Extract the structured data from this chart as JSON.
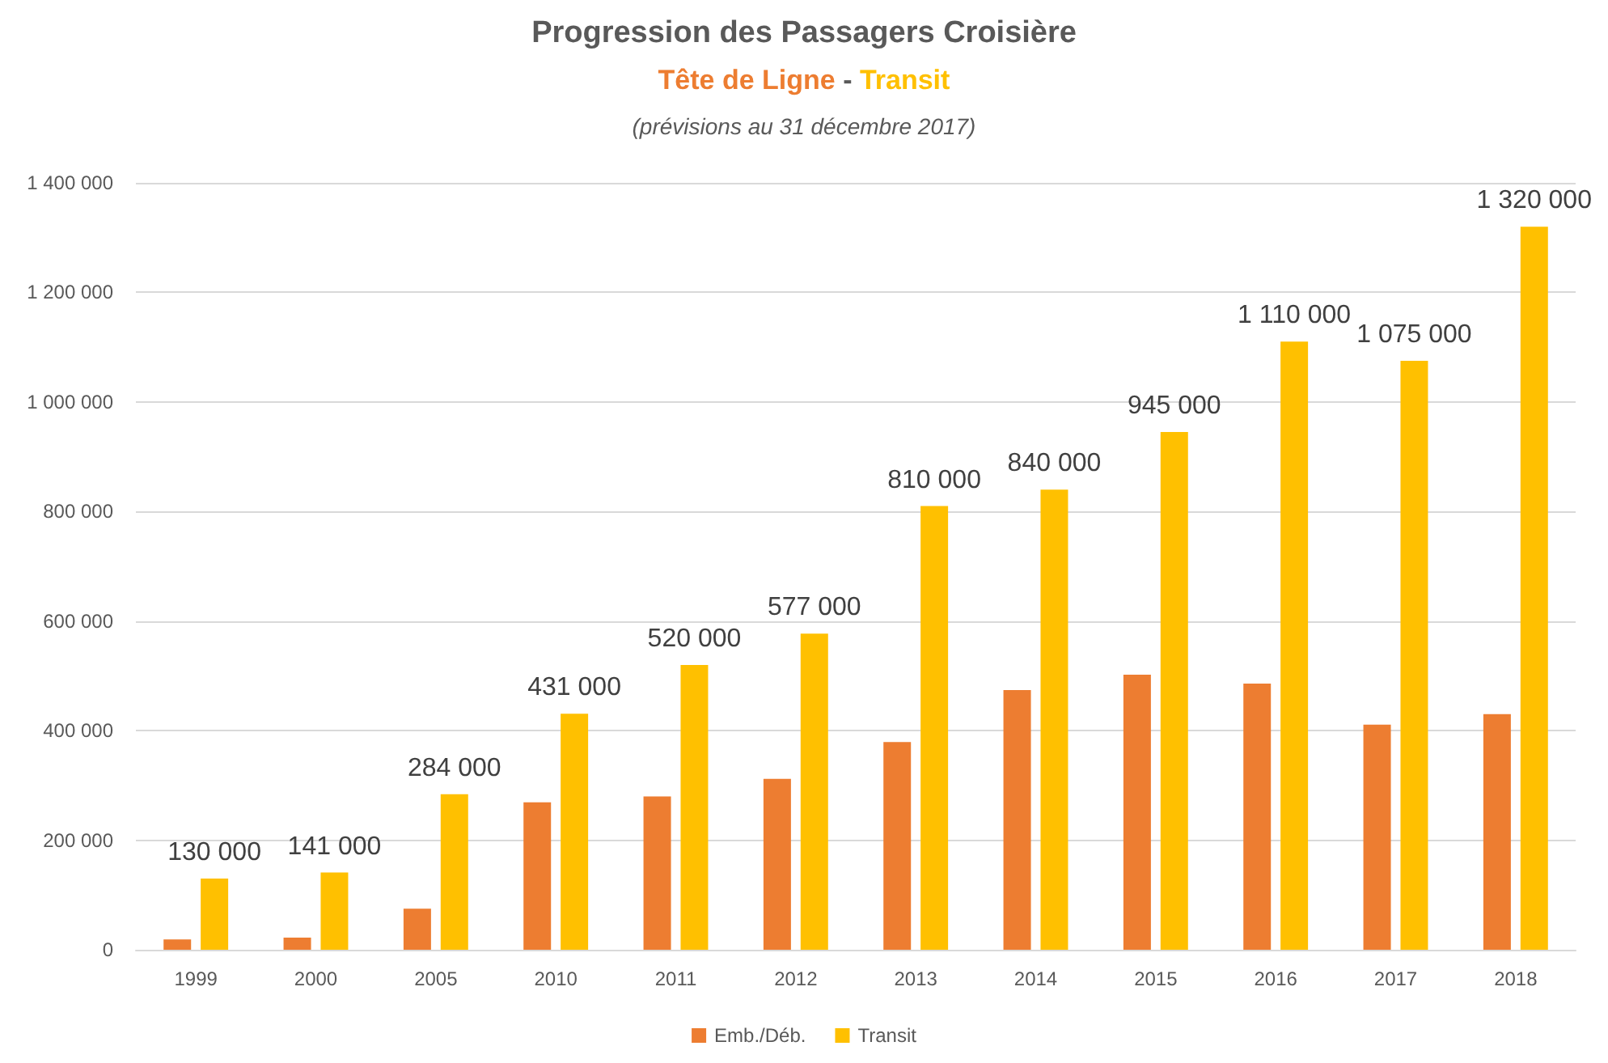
{
  "chart_data": {
    "type": "bar",
    "title": "Progression des Passagers Croisière",
    "subtitle": "Tête de Ligne - Transit",
    "annotations": [
      "(prévisions au 31 décembre 2017)"
    ],
    "categories": [
      "1999",
      "2000",
      "2005",
      "2010",
      "2011",
      "2012",
      "2013",
      "2014",
      "2015",
      "2016",
      "2017",
      "2018"
    ],
    "series": [
      {
        "name": "Emb./Déb.",
        "color": "#ed7d31",
        "values": [
          19000,
          22000,
          75000,
          269000,
          280000,
          312000,
          379000,
          474000,
          502000,
          486000,
          411000,
          430000
        ]
      },
      {
        "name": "Transit",
        "color": "#ffc000",
        "values": [
          130000,
          141000,
          284000,
          431000,
          520000,
          577000,
          810000,
          840000,
          945000,
          1110000,
          1075000,
          1320000
        ],
        "value_labels": [
          "130 000",
          "141 000",
          "284 000",
          "431 000",
          "520 000",
          "577 000",
          "810 000",
          "840 000",
          "945 000",
          "1 110 000",
          "1 075 000",
          "1 320 000"
        ]
      }
    ],
    "ylim": [
      0,
      1400000
    ],
    "yticks": [
      {
        "value": 0,
        "label": "0"
      },
      {
        "value": 200000,
        "label": "200 000"
      },
      {
        "value": 400000,
        "label": "400 000"
      },
      {
        "value": 600000,
        "label": "600 000"
      },
      {
        "value": 800000,
        "label": "800 000"
      },
      {
        "value": 1000000,
        "label": "1 000 000"
      },
      {
        "value": 1200000,
        "label": "1 200 000"
      },
      {
        "value": 1400000,
        "label": "1 400 000"
      }
    ],
    "grid": "y",
    "legend": "bottom"
  }
}
